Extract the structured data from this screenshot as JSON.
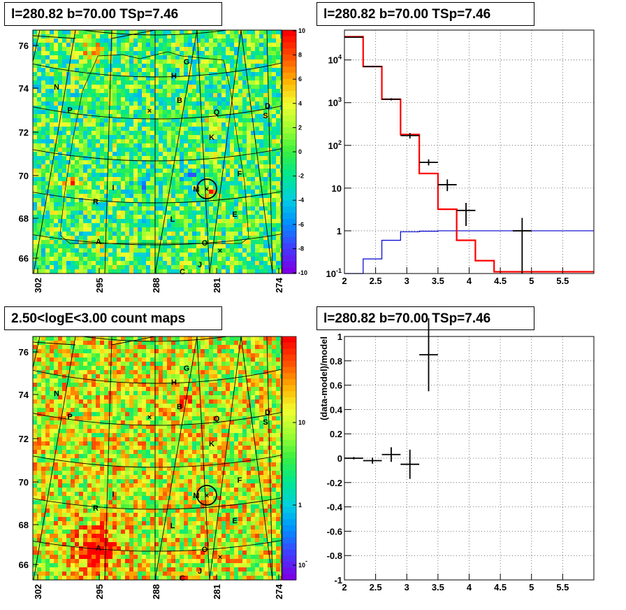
{
  "titles": {
    "map_top": "l=280.82 b=70.00 TSp=7.46",
    "hist_top": "l=280.82 b=70.00 TSp=7.46",
    "map_bottom": "2.50<logE<3.00 count maps",
    "hist_bottom": "l=280.82 b=70.00 TSp=7.46"
  },
  "colors": {
    "model": "#ff0000",
    "background_model": "#0000cc",
    "data": "#000000",
    "colorbar": [
      "#7a00e6",
      "#3f3fff",
      "#0090ff",
      "#00d0e0",
      "#00e890",
      "#38f040",
      "#a0ff30",
      "#f0ff30",
      "#ffb000",
      "#ff5000",
      "#ff0000"
    ]
  },
  "map_top": {
    "x_ticks": [
      "302",
      "295",
      "288",
      "281",
      "274"
    ],
    "y_ticks": [
      "76",
      "74",
      "72",
      "70",
      "68",
      "66"
    ],
    "colorbar_ticks": [
      "10",
      "8",
      "6",
      "4",
      "2",
      "0",
      "-2",
      "-4",
      "-6",
      "-8",
      "-10"
    ],
    "source_labels": [
      "G",
      "H",
      "N",
      "B",
      "D",
      "P",
      "Q",
      "S",
      "K",
      "F",
      "I",
      "M",
      "R",
      "E",
      "L",
      "A",
      "O",
      "J",
      "C"
    ]
  },
  "map_bottom": {
    "x_ticks": [
      "302",
      "295",
      "288",
      "281",
      "274"
    ],
    "y_ticks": [
      "76",
      "74",
      "72",
      "70",
      "68",
      "66"
    ],
    "colorbar_ticks": [
      "10",
      "1",
      "10^-1"
    ],
    "source_labels": [
      "G",
      "H",
      "N",
      "B",
      "D",
      "P",
      "Q",
      "S",
      "K",
      "F",
      "I",
      "M",
      "R",
      "E",
      "L",
      "A",
      "O",
      "J",
      "C"
    ]
  },
  "chart_data": [
    {
      "type": "line",
      "title": "l=280.82 b=70.00 TSp=7.46",
      "xlim": [
        2,
        6
      ],
      "ylim": [
        0.1,
        50000
      ],
      "y_log": true,
      "grid": true,
      "x_ticks": [
        "2",
        "2.5",
        "3",
        "3.5",
        "4",
        "4.5",
        "5",
        "5.5"
      ],
      "y_ticks": [
        "10^-1",
        "1",
        "10",
        "10^2",
        "10^3",
        "10^4"
      ],
      "bin_edges": [
        2.0,
        2.3,
        2.6,
        2.9,
        3.2,
        3.5,
        3.8,
        4.1,
        4.4,
        6.0
      ],
      "series": [
        {
          "values": [
            35000,
            7000,
            1200,
            180,
            22,
            3.2,
            0.6,
            0.2,
            0.11
          ]
        },
        {
          "values": [
            0.05,
            0.22,
            0.6,
            0.95,
            0.98,
            1.0,
            1.0,
            1.0,
            1.0
          ]
        }
      ],
      "data_points": [
        {
          "x": 2.15,
          "xerr": 0.15,
          "y": 34000,
          "ylo": 33600,
          "yhi": 34400
        },
        {
          "x": 2.45,
          "xerr": 0.15,
          "y": 7000,
          "ylo": 6830,
          "yhi": 7170
        },
        {
          "x": 2.75,
          "xerr": 0.15,
          "y": 1200,
          "ylo": 1130,
          "yhi": 1270
        },
        {
          "x": 3.05,
          "xerr": 0.15,
          "y": 170,
          "ylo": 145,
          "yhi": 195
        },
        {
          "x": 3.35,
          "xerr": 0.15,
          "y": 40,
          "ylo": 34,
          "yhi": 47
        },
        {
          "x": 3.65,
          "xerr": 0.15,
          "y": 12,
          "ylo": 8.5,
          "yhi": 16
        },
        {
          "x": 3.95,
          "xerr": 0.15,
          "y": 3,
          "ylo": 1.3,
          "yhi": 4.5
        },
        {
          "x": 4.85,
          "xerr": 0.15,
          "y": 1,
          "ylo": 0.1,
          "yhi": 2
        }
      ]
    },
    {
      "type": "scatter",
      "title": "l=280.82 b=70.00 TSp=7.46",
      "ylabel": "(data-model)/model",
      "xlim": [
        2,
        6
      ],
      "ylim": [
        -1,
        1
      ],
      "grid": true,
      "x_ticks": [
        "2",
        "2.5",
        "3",
        "3.5",
        "4",
        "4.5",
        "5",
        "5.5"
      ],
      "y_ticks": [
        "1",
        "0.8",
        "0.6",
        "0.4",
        "0.2",
        "0",
        "-0.2",
        "-0.4",
        "-0.6",
        "-0.8",
        "-1"
      ],
      "points": [
        {
          "x": 2.15,
          "xerr": 0.15,
          "y": 0.0,
          "yerr": 0.01
        },
        {
          "x": 2.45,
          "xerr": 0.15,
          "y": -0.02,
          "yerr": 0.025
        },
        {
          "x": 2.75,
          "xerr": 0.15,
          "y": 0.03,
          "yerr": 0.06
        },
        {
          "x": 3.05,
          "xerr": 0.15,
          "y": -0.05,
          "yerr": 0.12
        },
        {
          "x": 3.35,
          "xerr": 0.15,
          "y": 0.85,
          "yerr": 0.3
        }
      ]
    }
  ]
}
